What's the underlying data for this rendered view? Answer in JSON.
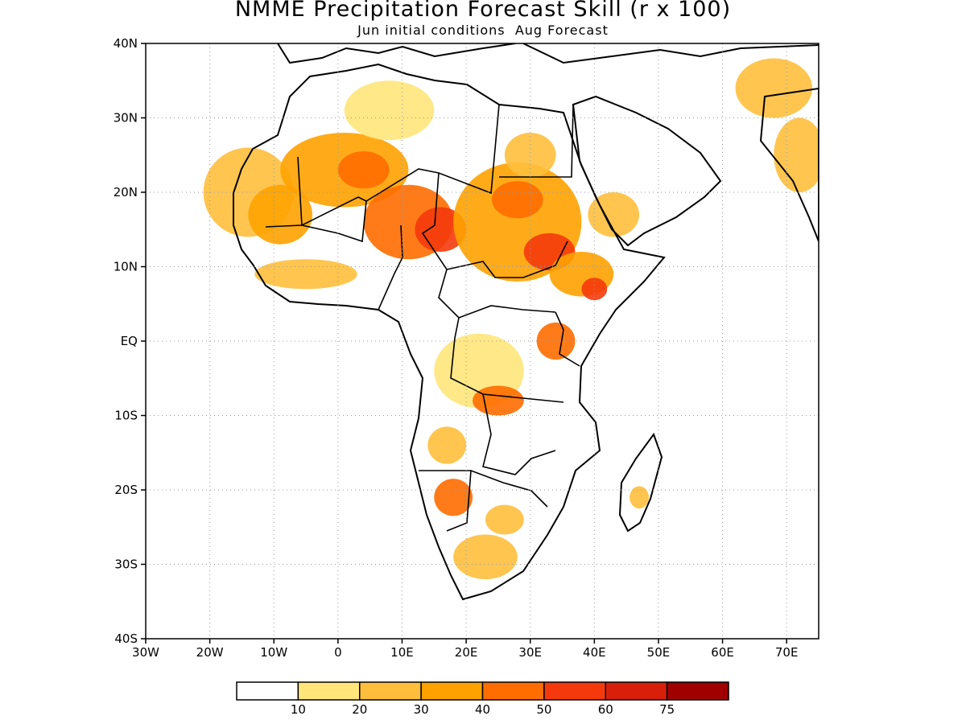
{
  "title": "NMME Precipitation Forecast Skill (r x 100)",
  "subtitle": "Jun initial conditions  Aug Forecast",
  "map": {
    "lon_range": [
      -30,
      75
    ],
    "lat_range": [
      -40,
      40
    ],
    "lat_ticks": [
      {
        "value": 40,
        "label": "40N"
      },
      {
        "value": 30,
        "label": "30N"
      },
      {
        "value": 20,
        "label": "20N"
      },
      {
        "value": 10,
        "label": "10N"
      },
      {
        "value": 0,
        "label": "EQ"
      },
      {
        "value": -10,
        "label": "10S"
      },
      {
        "value": -20,
        "label": "20S"
      },
      {
        "value": -30,
        "label": "30S"
      },
      {
        "value": -40,
        "label": "40S"
      }
    ],
    "lon_ticks": [
      {
        "value": -30,
        "label": "30W"
      },
      {
        "value": -20,
        "label": "20W"
      },
      {
        "value": -10,
        "label": "10W"
      },
      {
        "value": 0,
        "label": "0"
      },
      {
        "value": 10,
        "label": "10E"
      },
      {
        "value": 20,
        "label": "20E"
      },
      {
        "value": 30,
        "label": "30E"
      },
      {
        "value": 40,
        "label": "40E"
      },
      {
        "value": 50,
        "label": "50E"
      },
      {
        "value": 60,
        "label": "60E"
      },
      {
        "value": 70,
        "label": "70E"
      }
    ],
    "grid": "dotted"
  },
  "legend": {
    "labels": [
      "10",
      "20",
      "30",
      "40",
      "50",
      "60",
      "75"
    ],
    "colors": [
      "#ffffff",
      "#ffe57a",
      "#ffbf3c",
      "#ffa200",
      "#ff6d00",
      "#f43a0c",
      "#d81f0a",
      "#a00000"
    ]
  },
  "skill_regions": [
    {
      "lon": -14,
      "lat": 20,
      "rx": 7,
      "ry": 6,
      "level": 2
    },
    {
      "lon": -9,
      "lat": 17,
      "rx": 5,
      "ry": 4,
      "level": 3
    },
    {
      "lon": 1,
      "lat": 23,
      "rx": 10,
      "ry": 5,
      "level": 3
    },
    {
      "lon": 4,
      "lat": 23,
      "rx": 4,
      "ry": 2.5,
      "level": 4
    },
    {
      "lon": 11,
      "lat": 16,
      "rx": 7,
      "ry": 5,
      "level": 4
    },
    {
      "lon": 16,
      "lat": 15,
      "rx": 4,
      "ry": 3,
      "level": 5
    },
    {
      "lon": 28,
      "lat": 16,
      "rx": 10,
      "ry": 8,
      "level": 3
    },
    {
      "lon": 28,
      "lat": 19,
      "rx": 4,
      "ry": 2.5,
      "level": 4
    },
    {
      "lon": 33,
      "lat": 12,
      "rx": 4,
      "ry": 2.5,
      "level": 5
    },
    {
      "lon": 38,
      "lat": 9,
      "rx": 5,
      "ry": 3,
      "level": 3
    },
    {
      "lon": 40,
      "lat": 7,
      "rx": 2,
      "ry": 1.5,
      "level": 5
    },
    {
      "lon": 43,
      "lat": 17,
      "rx": 4,
      "ry": 3,
      "level": 2
    },
    {
      "lon": 8,
      "lat": 31,
      "rx": 7,
      "ry": 4,
      "level": 1
    },
    {
      "lon": 30,
      "lat": 25,
      "rx": 4,
      "ry": 3,
      "level": 2
    },
    {
      "lon": 68,
      "lat": 34,
      "rx": 6,
      "ry": 4,
      "level": 2
    },
    {
      "lon": 72,
      "lat": 25,
      "rx": 4,
      "ry": 5,
      "level": 2
    },
    {
      "lon": -5,
      "lat": 9,
      "rx": 8,
      "ry": 2,
      "level": 2
    },
    {
      "lon": 22,
      "lat": -4,
      "rx": 7,
      "ry": 5,
      "level": 1
    },
    {
      "lon": 25,
      "lat": -8,
      "rx": 4,
      "ry": 2,
      "level": 4
    },
    {
      "lon": 34,
      "lat": 0,
      "rx": 3,
      "ry": 2.5,
      "level": 4
    },
    {
      "lon": 17,
      "lat": -14,
      "rx": 3,
      "ry": 2.5,
      "level": 2
    },
    {
      "lon": 18,
      "lat": -21,
      "rx": 3,
      "ry": 2.5,
      "level": 4
    },
    {
      "lon": 23,
      "lat": -29,
      "rx": 5,
      "ry": 3,
      "level": 2
    },
    {
      "lon": 26,
      "lat": -24,
      "rx": 3,
      "ry": 2,
      "level": 2
    },
    {
      "lon": 47,
      "lat": -21,
      "rx": 1.5,
      "ry": 1.5,
      "level": 2
    }
  ]
}
